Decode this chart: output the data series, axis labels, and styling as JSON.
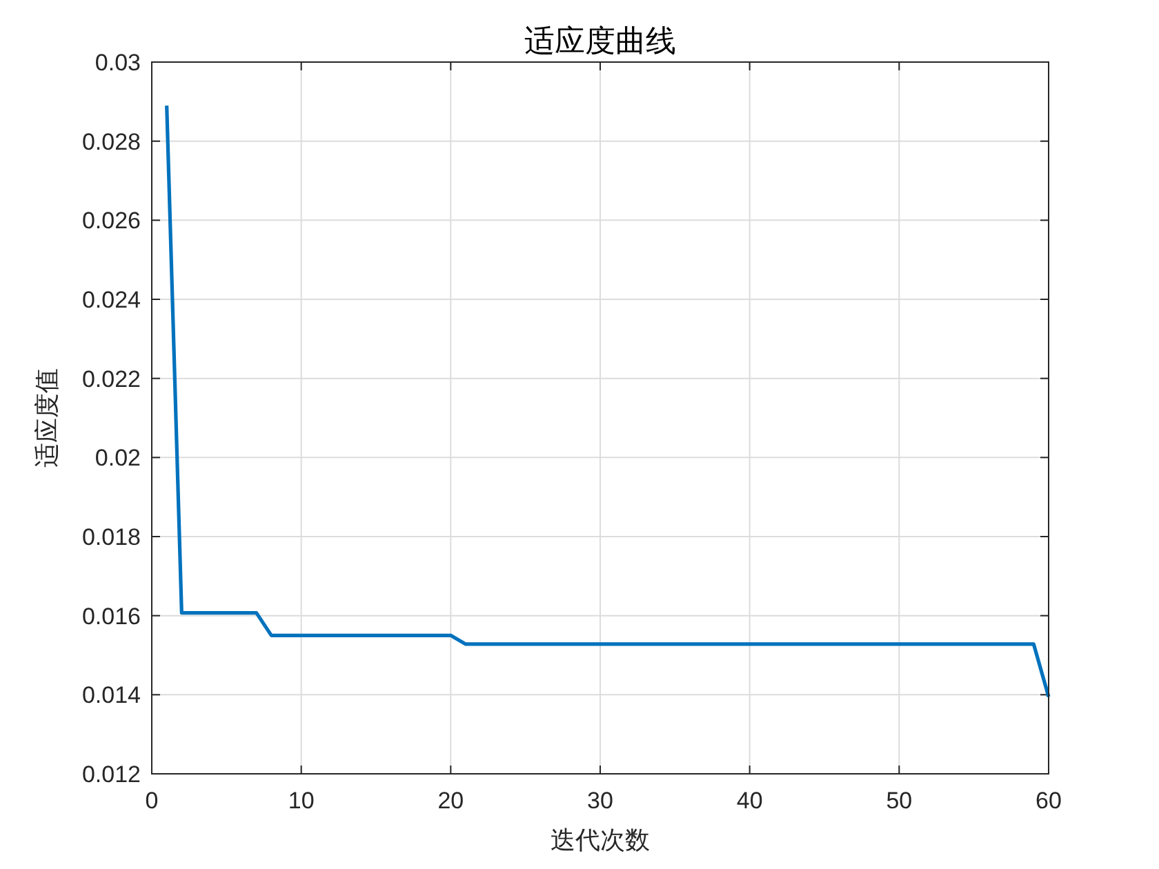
{
  "chart_data": {
    "type": "line",
    "title": "适应度曲线",
    "xlabel": "迭代次数",
    "ylabel": "适应度值",
    "x": [
      1,
      2,
      7,
      8,
      20,
      21,
      59,
      60
    ],
    "series": [
      {
        "color": "#0072bd",
        "values": [
          0.0289,
          0.01607,
          0.01607,
          0.0155,
          0.0155,
          0.01528,
          0.01528,
          0.01395
        ]
      }
    ],
    "xlim": [
      0,
      60
    ],
    "ylim": [
      0.012,
      0.03
    ],
    "xticks": [
      0,
      10,
      20,
      30,
      40,
      50,
      60
    ],
    "yticks": [
      0.012,
      0.014,
      0.016,
      0.018,
      0.02,
      0.022,
      0.024,
      0.026,
      0.028,
      0.03
    ],
    "grid": true,
    "marker": "none",
    "line_style": "solid"
  }
}
